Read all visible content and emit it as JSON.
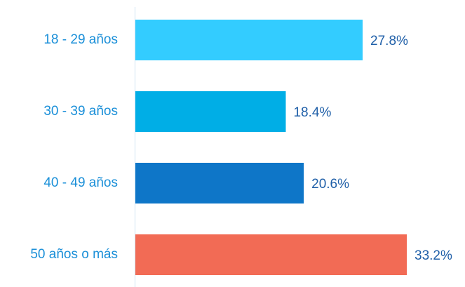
{
  "chart_data": {
    "type": "bar",
    "orientation": "horizontal",
    "categories": [
      "18 - 29 años",
      "30 - 39 años",
      "40 - 49 años",
      "50 años o más"
    ],
    "values": [
      27.8,
      18.4,
      20.6,
      33.2
    ],
    "value_labels": [
      "27.8%",
      "18.4%",
      "20.6%",
      "33.2%"
    ],
    "colors": [
      "#33ccff",
      "#00aee6",
      "#0e76c8",
      "#f26b55"
    ]
  }
}
